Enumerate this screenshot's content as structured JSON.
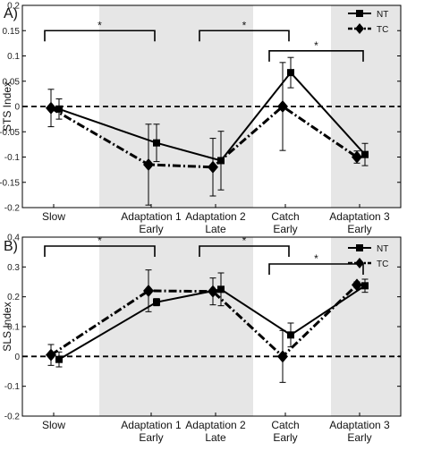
{
  "chart_data": [
    {
      "type": "line",
      "panel_label": "A)",
      "ylabel": "STS Index",
      "ylim": [
        -0.2,
        0.2
      ],
      "yticks": [
        "-0.2",
        "-0.15",
        "-0.1",
        "-0.05",
        "0",
        "0.05",
        "0.1",
        "0.15",
        "0.2"
      ],
      "categories": [
        [
          "Slow"
        ],
        [
          "Adaptation 1",
          "Early"
        ],
        [
          "Adaptation 2",
          "Late"
        ],
        [
          "Catch",
          "Early"
        ],
        [
          "Adaptation 3",
          "Early"
        ]
      ],
      "shaded_categories": [
        1,
        4
      ],
      "series": [
        {
          "name": "NT",
          "marker": "square",
          "line": "solid",
          "points": [
            {
              "x": 0,
              "y": -0.005,
              "err": 0.02
            },
            {
              "x": 1,
              "y": -0.072,
              "err": 0.037
            },
            {
              "x": 2,
              "y": -0.107,
              "err": 0.058
            },
            {
              "x": 3,
              "y": 0.067,
              "err": 0.03
            },
            {
              "x": 4,
              "y": -0.095,
              "err": 0.022
            }
          ]
        },
        {
          "name": "TC",
          "marker": "diamond",
          "line": "dashdot",
          "points": [
            {
              "x": 0,
              "y": -0.003,
              "err": 0.037
            },
            {
              "x": 1,
              "y": -0.115,
              "err": 0.08
            },
            {
              "x": 2,
              "y": -0.12,
              "err": 0.057
            },
            {
              "x": 3,
              "y": 0.0,
              "err": 0.087
            },
            {
              "x": 4,
              "y": -0.1,
              "err": 0.012
            }
          ]
        }
      ],
      "significance": [
        {
          "from": 0,
          "to": 1,
          "y": 0.15,
          "label": "*"
        },
        {
          "from": 2,
          "to": 3,
          "y": 0.15,
          "label": "*"
        },
        {
          "from": 3,
          "to": 4,
          "y": 0.11,
          "label": "*"
        }
      ],
      "zero_line": "dashed",
      "legend": "top-right"
    },
    {
      "type": "line",
      "panel_label": "B)",
      "ylabel": "SLS Index",
      "ylim": [
        -0.2,
        0.4
      ],
      "yticks": [
        "-0.2",
        "-0.1",
        "0",
        "0.1",
        "0.2",
        "0.3",
        "0.4"
      ],
      "categories": [
        [
          "Slow"
        ],
        [
          "Adaptation 1",
          "Early"
        ],
        [
          "Adaptation 2",
          "Late"
        ],
        [
          "Catch",
          "Early"
        ],
        [
          "Adaptation 3",
          "Early"
        ]
      ],
      "shaded_categories": [
        1,
        4
      ],
      "series": [
        {
          "name": "NT",
          "marker": "square",
          "line": "solid",
          "points": [
            {
              "x": 0,
              "y": -0.01,
              "err": 0.025
            },
            {
              "x": 1,
              "y": 0.182,
              "err": 0.012
            },
            {
              "x": 2,
              "y": 0.225,
              "err": 0.055
            },
            {
              "x": 3,
              "y": 0.072,
              "err": 0.04
            },
            {
              "x": 4,
              "y": 0.237,
              "err": 0.022
            }
          ]
        },
        {
          "name": "TC",
          "marker": "diamond",
          "line": "dashdot",
          "points": [
            {
              "x": 0,
              "y": 0.005,
              "err": 0.035
            },
            {
              "x": 1,
              "y": 0.22,
              "err": 0.07
            },
            {
              "x": 2,
              "y": 0.218,
              "err": 0.045
            },
            {
              "x": 3,
              "y": 0.0,
              "err": 0.087
            },
            {
              "x": 4,
              "y": 0.24,
              "err": 0.01
            }
          ]
        }
      ],
      "significance": [
        {
          "from": 0,
          "to": 1,
          "y": 0.37,
          "label": "*"
        },
        {
          "from": 2,
          "to": 3,
          "y": 0.37,
          "label": "*"
        },
        {
          "from": 3,
          "to": 4,
          "y": 0.31,
          "label": "*"
        }
      ],
      "zero_line": "dashed",
      "legend": "top-right"
    }
  ]
}
